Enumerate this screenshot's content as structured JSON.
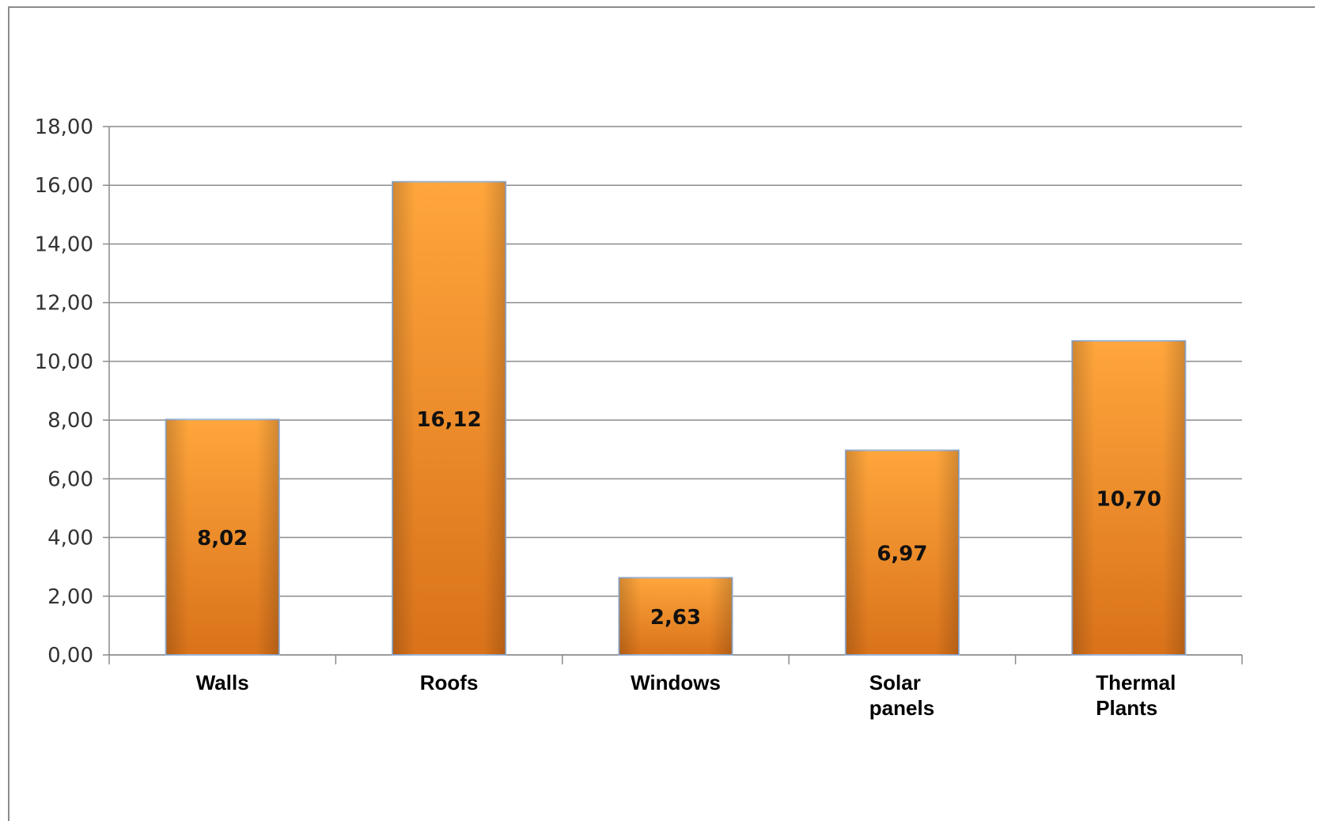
{
  "chart_data": {
    "type": "bar",
    "categories": [
      [
        "Walls"
      ],
      [
        "Roofs"
      ],
      [
        "Windows"
      ],
      [
        "Solar",
        "panels"
      ],
      [
        "Thermal",
        "Plants"
      ]
    ],
    "values": [
      8.02,
      16.12,
      2.63,
      6.97,
      10.7
    ],
    "data_labels": [
      "8,02",
      "16,12",
      "2,63",
      "6,97",
      "10,70"
    ],
    "y_ticks": [
      "0,00",
      "2,00",
      "4,00",
      "6,00",
      "8,00",
      "10,00",
      "12,00",
      "14,00",
      "16,00",
      "18,00"
    ],
    "ylim": [
      0,
      18
    ],
    "y_step": 2,
    "grid": true,
    "legend": "none",
    "colors": {
      "bar_light": "#ffa63c",
      "bar_mid": "#f69226",
      "bar_dark": "#d9721a",
      "bar_edge": "#9fb4d3",
      "grid": "#8c8c8c",
      "axis": "#8c8c8c"
    }
  }
}
